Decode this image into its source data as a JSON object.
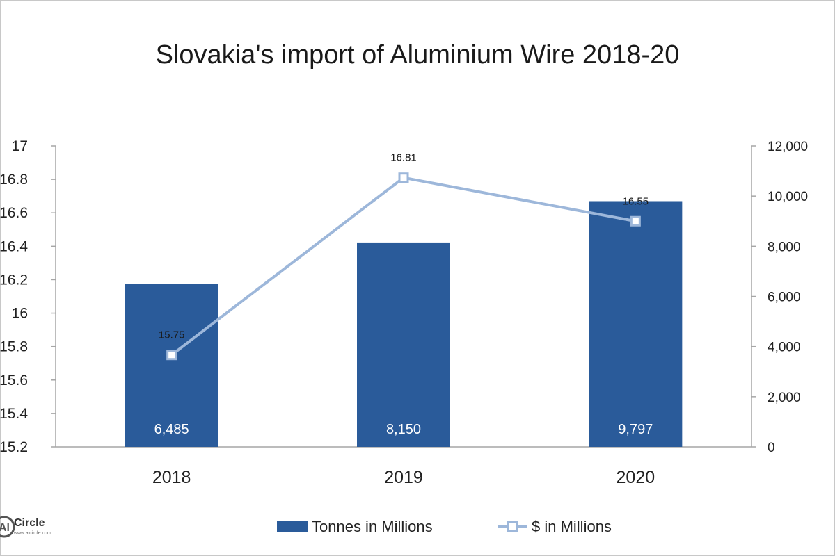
{
  "chart_data": {
    "type": "bar",
    "title": "Slovakia's import of Aluminium Wire 2018-20",
    "categories": [
      "2018",
      "2019",
      "2020"
    ],
    "series": [
      {
        "name": "Tonnes in Millions",
        "type": "bar",
        "axis": "right",
        "values": [
          6485,
          8150,
          9797
        ],
        "labels": [
          "6,485",
          "8,150",
          "9,797"
        ],
        "color": "#2A5B9A"
      },
      {
        "name": "$ in Millions",
        "type": "line",
        "axis": "left",
        "values": [
          15.75,
          16.81,
          16.55
        ],
        "labels": [
          "15.75",
          "16.81",
          "16.55"
        ],
        "color": "#9DB7DA",
        "marker": "square"
      }
    ],
    "y_left": {
      "lim": [
        15.2,
        17
      ],
      "ticks": [
        "17",
        "16.8",
        "16.6",
        "16.4",
        "16.2",
        "16",
        "15.8",
        "15.6",
        "15.4",
        "15.2"
      ]
    },
    "y_right": {
      "lim": [
        0,
        12000
      ],
      "ticks": [
        "12,000",
        "10,000",
        "8,000",
        "6,000",
        "4,000",
        "2,000",
        "0"
      ]
    },
    "grid": false,
    "legend": "bottom"
  },
  "logo": {
    "name": "Circle",
    "sub": "www.alcircle.com"
  }
}
